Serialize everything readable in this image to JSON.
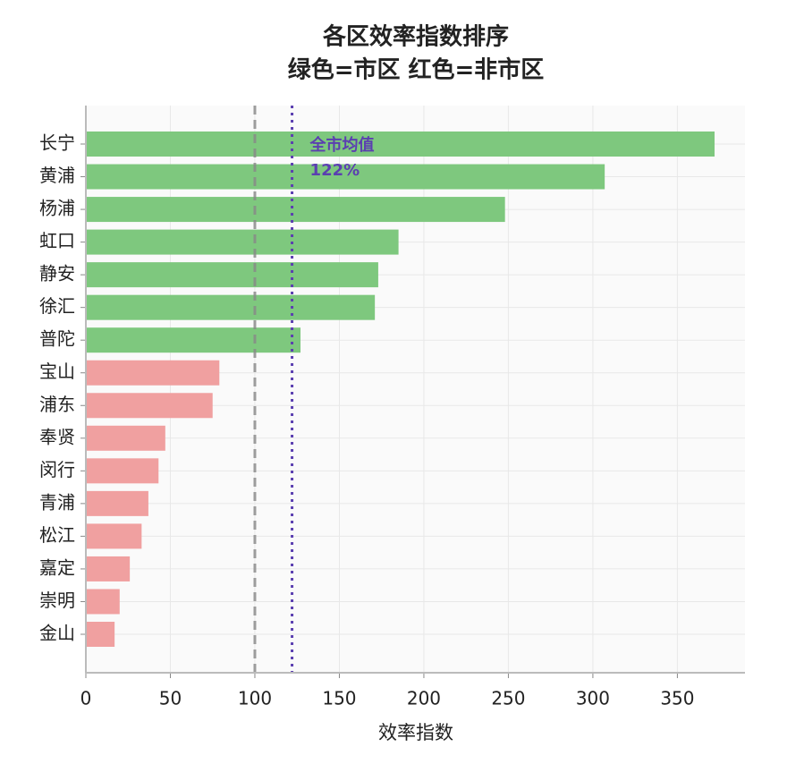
{
  "chart_data": {
    "type": "barh",
    "title": "各区效率指数排序",
    "subtitle": "绿色=市区 红色=非市区",
    "x_label": "效率指数",
    "categories": [
      "长宁",
      "黄浦",
      "杨浦",
      "虹口",
      "静安",
      "徐汇",
      "普陀",
      "宝山",
      "浦东",
      "奉贤",
      "闵行",
      "青浦",
      "松江",
      "嘉定",
      "崇明",
      "金山"
    ],
    "values": [
      372,
      307,
      248,
      185,
      173,
      171,
      127,
      79,
      75,
      47,
      43,
      37,
      33,
      26,
      20,
      17
    ],
    "colors": [
      "#7ec87e",
      "#7ec87e",
      "#7ec87e",
      "#7ec87e",
      "#7ec87e",
      "#7ec87e",
      "#7ec87e",
      "#f0a0a0",
      "#f0a0a0",
      "#f0a0a0",
      "#f0a0a0",
      "#f0a0a0",
      "#f0a0a0",
      "#f0a0a0",
      "#f0a0a0",
      "#f0a0a0"
    ],
    "xlim": [
      0,
      390
    ],
    "xticks": [
      0,
      50,
      100,
      150,
      200,
      250,
      300,
      350
    ],
    "grid": true,
    "reference_lines": [
      {
        "value": 100,
        "color": "#888888",
        "style": "dashed"
      },
      {
        "value": 122,
        "color": "#5b3fb0",
        "style": "dotted",
        "label": "全市均值",
        "value_label": "122%"
      }
    ]
  }
}
